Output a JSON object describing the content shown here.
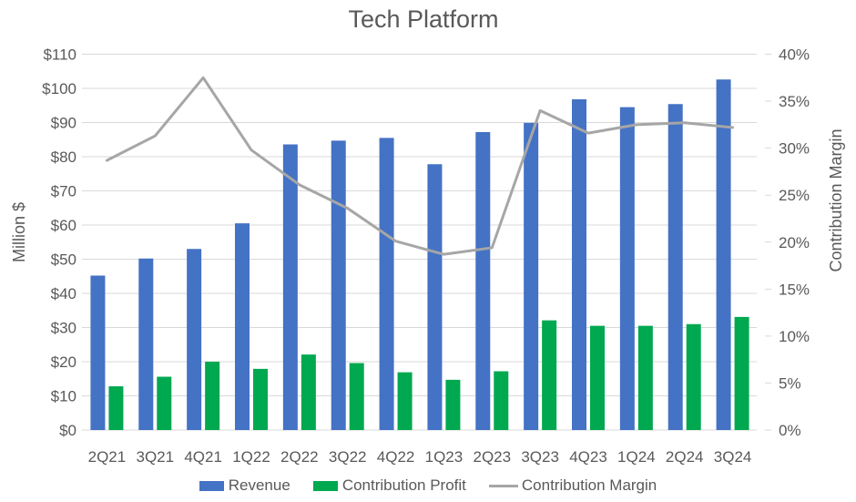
{
  "chart_data": {
    "type": "combo-bar-line",
    "title": "Tech Platform",
    "categories": [
      "2Q21",
      "3Q21",
      "4Q21",
      "1Q22",
      "2Q22",
      "3Q22",
      "4Q22",
      "1Q23",
      "2Q23",
      "3Q23",
      "4Q23",
      "1Q24",
      "2Q24",
      "3Q24"
    ],
    "series": [
      {
        "name": "Revenue",
        "type": "bar",
        "axis": "left",
        "color": "#4472C4",
        "values": [
          45.2,
          50.2,
          53.0,
          60.5,
          83.6,
          84.7,
          85.5,
          77.8,
          87.2,
          89.9,
          96.8,
          94.5,
          95.4,
          102.6
        ]
      },
      {
        "name": "Contribution Profit",
        "type": "bar",
        "axis": "left",
        "color": "#00A850",
        "values": [
          12.8,
          15.6,
          20.0,
          17.9,
          22.1,
          19.6,
          16.9,
          14.7,
          17.2,
          32.1,
          30.5,
          30.5,
          31.0,
          33.1
        ]
      },
      {
        "name": "Contribution Margin",
        "type": "line",
        "axis": "right",
        "color": "#A6A6A6",
        "values": [
          28.7,
          31.3,
          37.5,
          29.8,
          26.1,
          23.6,
          20.1,
          18.7,
          19.4,
          34.0,
          31.6,
          32.5,
          32.7,
          32.2
        ]
      }
    ],
    "left_axis": {
      "label": "Million $",
      "min": 0,
      "max": 110,
      "step": 10,
      "tick_prefix": "$",
      "tick_suffix": "",
      "tick_labels": [
        "$0",
        "$10",
        "$20",
        "$30",
        "$40",
        "$50",
        "$60",
        "$70",
        "$80",
        "$90",
        "$100",
        "$110"
      ]
    },
    "right_axis": {
      "label": "Contribution Margin",
      "min": 0,
      "max": 40,
      "step": 5,
      "tick_prefix": "",
      "tick_suffix": "%",
      "tick_labels": [
        "0%",
        "5%",
        "10%",
        "15%",
        "20%",
        "25%",
        "30%",
        "35%",
        "40%"
      ]
    },
    "grid": true,
    "legend_position": "bottom"
  },
  "colors": {
    "text": "#595959",
    "grid": "#D9D9D9",
    "background": "#FFFFFF"
  }
}
